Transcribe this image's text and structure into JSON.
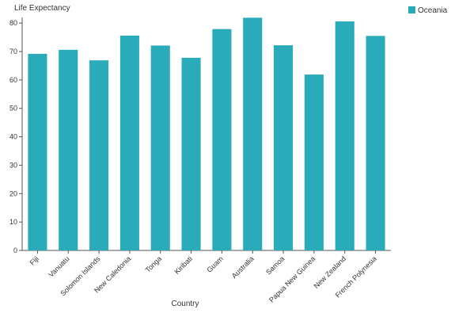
{
  "chart_data": {
    "type": "bar",
    "xlabel": "Country",
    "ylabel": "Life Expectancy",
    "ylim": [
      0,
      82
    ],
    "yticks": [
      0,
      10,
      20,
      30,
      40,
      50,
      60,
      70,
      80
    ],
    "grid": false,
    "legend_position": "top-right",
    "categories": [
      "Fiji",
      "Vanuatu",
      "Solomon Islands",
      "New Caledonia",
      "Tonga",
      "Kiribati",
      "Guam",
      "Australia",
      "Samoa",
      "Papua New Guinea",
      "New Zealand",
      "French Polynesia"
    ],
    "series": [
      {
        "name": "Oceania",
        "color": "#2aabba",
        "values": [
          69.2,
          70.6,
          66.9,
          75.6,
          72.1,
          67.8,
          77.9,
          81.9,
          72.2,
          61.9,
          80.6,
          75.5
        ]
      }
    ]
  }
}
